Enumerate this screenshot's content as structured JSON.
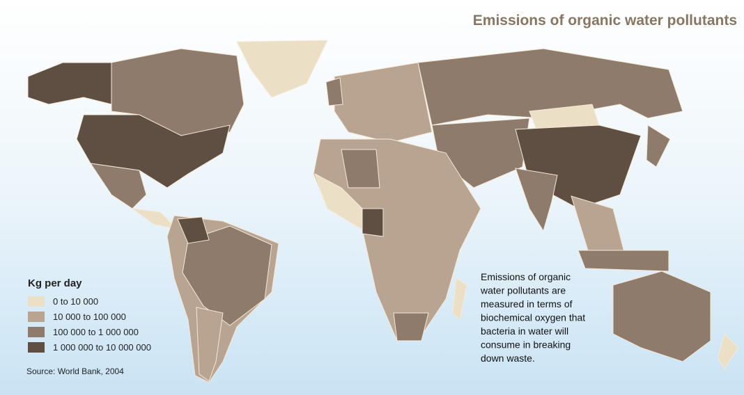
{
  "title": "Emissions of organic water pollutants",
  "legend": {
    "title": "Kg per day",
    "items": [
      {
        "label": "0 to 10 000",
        "color": "#ebdfc6"
      },
      {
        "label": "10 000 to 100 000",
        "color": "#b8a490"
      },
      {
        "label": "100 000 to 1 000 000",
        "color": "#8f7b6b"
      },
      {
        "label": "1 000 000 to 10 000 000",
        "color": "#5f4e42"
      }
    ]
  },
  "source": "Source: World Bank, 2004",
  "note": [
    "Emissions of organic",
    "water pollutants are",
    "measured in terms of",
    "biochemical oxygen that",
    "bacteria in water will",
    "consume in breaking",
    "down waste."
  ]
}
